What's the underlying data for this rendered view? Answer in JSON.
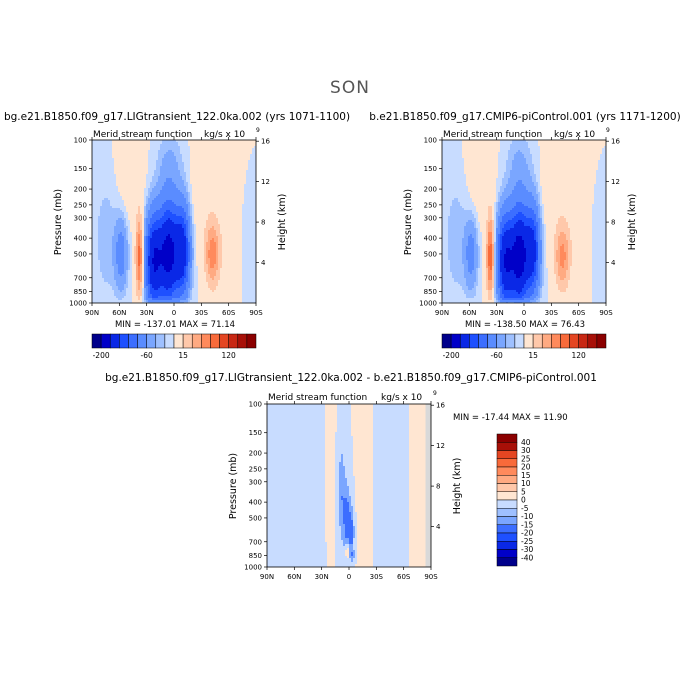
{
  "page_title": "SON",
  "colors": {
    "neg": [
      "#00008b",
      "#0000c8",
      "#0a28e6",
      "#1e50ff",
      "#3c6eff",
      "#5a8cff",
      "#7aa6ff",
      "#9ec0ff",
      "#c8dcff"
    ],
    "pos": [
      "#ffe6d2",
      "#ffc8aa",
      "#ffaa82",
      "#ff8a5c",
      "#f86a3a",
      "#e44622",
      "#c82814",
      "#a81008",
      "#8b0000"
    ],
    "mask": "#d9d9d9"
  },
  "chart_data": [
    {
      "type": "contour",
      "id": "panel1",
      "title": "bg.e21.B1850.f09_g17.LIGtransient_122.0ka.002 (yrs 1071-1100)",
      "subtitle_left": "Merid stream function",
      "subtitle_right": "kg/s x 10",
      "subtitle_exp": "9",
      "xlabel": "",
      "ylabel": "Pressure (mb)",
      "y2label": "Height (km)",
      "x_ticks": [
        "90N",
        "60N",
        "30N",
        "0",
        "30S",
        "60S",
        "90S"
      ],
      "x_values": [
        90,
        60,
        30,
        0,
        -30,
        -60,
        -90
      ],
      "y_ticks": [
        "100",
        "150",
        "200",
        "250",
        "300",
        "400",
        "500",
        "700",
        "850",
        "1000"
      ],
      "y_values": [
        100,
        150,
        200,
        250,
        300,
        400,
        500,
        700,
        850,
        1000
      ],
      "y2_ticks": [
        "16",
        "12",
        "8",
        "4"
      ],
      "y2_values": [
        16,
        12,
        8,
        4
      ],
      "stats": "MIN = -137.01   MAX =  71.14",
      "levels_neg": [
        -200,
        -160,
        -120,
        -80,
        -60,
        -40,
        -20,
        -10,
        -5
      ],
      "levels_pos": [
        5,
        15,
        30,
        45,
        60,
        80,
        100,
        120,
        140
      ],
      "colorbar_labels": [
        "-200",
        "-60",
        "15",
        "120"
      ],
      "cells": [
        {
          "lat": 22,
          "p": 550,
          "amp": -115,
          "wl": 9,
          "wp": 0.62
        },
        {
          "lat": 6,
          "p": 500,
          "amp": -135,
          "wl": 10,
          "wp": 0.65
        },
        {
          "lat": -9,
          "p": 480,
          "amp": -100,
          "wl": 8,
          "wp": 0.6
        },
        {
          "lat": 38,
          "p": 520,
          "amp": 68,
          "wl": 4,
          "wp": 0.55
        },
        {
          "lat": -42,
          "p": 500,
          "amp": 52,
          "wl": 8,
          "wp": 0.45
        },
        {
          "lat": -57,
          "p": 300,
          "amp": 7,
          "wl": 20,
          "wp": 1.2
        },
        {
          "lat": 58,
          "p": 500,
          "amp": -28,
          "wl": 7,
          "wp": 0.5
        },
        {
          "lat": 74,
          "p": 400,
          "amp": -8,
          "wl": 14,
          "wp": 0.9
        },
        {
          "lat": -82,
          "p": 400,
          "amp": -6,
          "wl": 10,
          "wp": 0.8
        },
        {
          "lat": 48,
          "p": 170,
          "amp": 6,
          "wl": 16,
          "wp": 0.7
        },
        {
          "lat": -30,
          "p": 200,
          "amp": 6,
          "wl": 12,
          "wp": 0.7
        },
        {
          "lat": 5,
          "p": 150,
          "amp": -12,
          "wl": 14,
          "wp": 0.5
        }
      ]
    },
    {
      "type": "contour",
      "id": "panel2",
      "title": "b.e21.B1850.f09_g17.CMIP6-piControl.001 (yrs 1171-1200)",
      "subtitle_left": "Merid stream function",
      "subtitle_right": "kg/s x 10",
      "subtitle_exp": "9",
      "xlabel": "",
      "ylabel": "Pressure (mb)",
      "y2label": "Height (km)",
      "x_ticks": [
        "90N",
        "60N",
        "30N",
        "0",
        "30S",
        "60S",
        "90S"
      ],
      "x_values": [
        90,
        60,
        30,
        0,
        -30,
        -60,
        -90
      ],
      "y_ticks": [
        "100",
        "150",
        "200",
        "250",
        "300",
        "400",
        "500",
        "700",
        "850",
        "1000"
      ],
      "y_values": [
        100,
        150,
        200,
        250,
        300,
        400,
        500,
        700,
        850,
        1000
      ],
      "y2_ticks": [
        "16",
        "12",
        "8",
        "4"
      ],
      "y2_values": [
        16,
        12,
        8,
        4
      ],
      "stats": "MIN = -138.50   MAX =  76.43",
      "levels_neg": [
        -200,
        -160,
        -120,
        -80,
        -60,
        -40,
        -20,
        -10,
        -5
      ],
      "levels_pos": [
        5,
        15,
        30,
        45,
        60,
        80,
        100,
        120,
        140
      ],
      "colorbar_labels": [
        "-200",
        "-60",
        "15",
        "120"
      ],
      "cells": [
        {
          "lat": 20,
          "p": 550,
          "amp": -118,
          "wl": 9,
          "wp": 0.62
        },
        {
          "lat": 5,
          "p": 520,
          "amp": -138,
          "wl": 9,
          "wp": 0.65
        },
        {
          "lat": -9,
          "p": 480,
          "amp": -95,
          "wl": 8,
          "wp": 0.6
        },
        {
          "lat": 37,
          "p": 520,
          "amp": 74,
          "wl": 4,
          "wp": 0.55
        },
        {
          "lat": -42,
          "p": 520,
          "amp": 48,
          "wl": 8,
          "wp": 0.45
        },
        {
          "lat": -57,
          "p": 300,
          "amp": 7,
          "wl": 20,
          "wp": 1.2
        },
        {
          "lat": 58,
          "p": 500,
          "amp": -26,
          "wl": 7,
          "wp": 0.5
        },
        {
          "lat": 74,
          "p": 400,
          "amp": -8,
          "wl": 14,
          "wp": 0.9
        },
        {
          "lat": -82,
          "p": 400,
          "amp": -6,
          "wl": 10,
          "wp": 0.8
        },
        {
          "lat": 48,
          "p": 170,
          "amp": 6,
          "wl": 16,
          "wp": 0.7
        },
        {
          "lat": -30,
          "p": 200,
          "amp": 6,
          "wl": 12,
          "wp": 0.7
        },
        {
          "lat": 5,
          "p": 150,
          "amp": -12,
          "wl": 14,
          "wp": 0.5
        }
      ]
    },
    {
      "type": "contour",
      "id": "panel3",
      "title": "bg.e21.B1850.f09_g17.LIGtransient_122.0ka.002 - b.e21.B1850.f09_g17.CMIP6-piControl.001",
      "subtitle_left": "Merid stream function",
      "subtitle_right": "kg/s x 10",
      "subtitle_exp": "9",
      "xlabel": "",
      "ylabel": "Pressure (mb)",
      "y2label": "Height (km)",
      "x_ticks": [
        "90N",
        "60N",
        "30N",
        "0",
        "30S",
        "60S",
        "90S"
      ],
      "x_values": [
        90,
        60,
        30,
        0,
        -30,
        -60,
        -90
      ],
      "y_ticks": [
        "100",
        "150",
        "200",
        "250",
        "300",
        "400",
        "500",
        "700",
        "850",
        "1000"
      ],
      "y_values": [
        100,
        150,
        200,
        250,
        300,
        400,
        500,
        700,
        850,
        1000
      ],
      "y2_ticks": [
        "16",
        "12",
        "8",
        "4"
      ],
      "y2_values": [
        16,
        12,
        8,
        4
      ],
      "stats": "MIN = -17.44   MAX =  11.90",
      "levels_neg": [
        -40,
        -30,
        -25,
        -20,
        -15,
        -10,
        -5,
        0
      ],
      "levels_pos": [
        5,
        10,
        15,
        20,
        25,
        30,
        40
      ],
      "colorbar_labels": [
        "40",
        "30",
        "25",
        "20",
        "15",
        "10",
        "5",
        "0",
        "-5",
        "-10",
        "-15",
        "-20",
        "-25",
        "-30",
        "-40"
      ],
      "cells": [
        {
          "lat": 2,
          "p": 520,
          "amp": -13,
          "wl": 4,
          "wp": 0.5
        },
        {
          "lat": 8,
          "p": 350,
          "amp": -9,
          "wl": 4,
          "wp": 0.7
        },
        {
          "lat": -3,
          "p": 620,
          "amp": -10,
          "wl": 3,
          "wp": 0.35
        },
        {
          "lat": 35,
          "p": 400,
          "amp": -4,
          "wl": 12,
          "wp": 1.1
        },
        {
          "lat": 60,
          "p": 350,
          "amp": -3,
          "wl": 12,
          "wp": 1.2
        },
        {
          "lat": -48,
          "p": 400,
          "amp": -4,
          "wl": 10,
          "wp": 1.1
        },
        {
          "lat": -15,
          "p": 400,
          "amp": 4,
          "wl": 5,
          "wp": 1.2
        },
        {
          "lat": 22,
          "p": 300,
          "amp": 4,
          "wl": 5,
          "wp": 1.2
        },
        {
          "lat": -78,
          "p": 300,
          "amp": 3,
          "wl": 7,
          "wp": 1.3
        },
        {
          "lat": 2,
          "p": 800,
          "amp": 11,
          "wl": 2,
          "wp": 0.12
        },
        {
          "lat": -4,
          "p": 860,
          "amp": -6,
          "wl": 2,
          "wp": 0.1
        }
      ]
    }
  ]
}
